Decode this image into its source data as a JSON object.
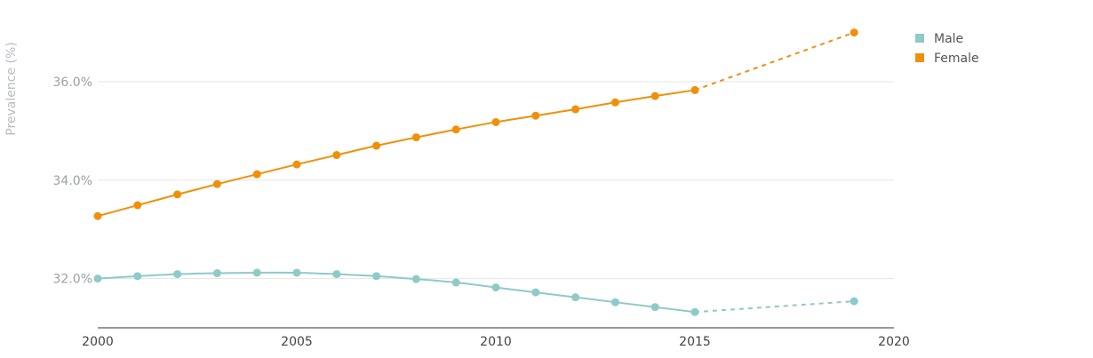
{
  "chart_data": {
    "type": "line",
    "title": "",
    "xlabel": "",
    "ylabel": "Prevalence (%)",
    "xlim": [
      2000,
      2020
    ],
    "ylim": [
      31.0,
      37.3
    ],
    "x_ticks": [
      {
        "value": 2000,
        "label": "2000"
      },
      {
        "value": 2005,
        "label": "2005"
      },
      {
        "value": 2010,
        "label": "2010"
      },
      {
        "value": 2015,
        "label": "2015"
      },
      {
        "value": 2020,
        "label": "2020"
      }
    ],
    "y_ticks": [
      {
        "value": 32.0,
        "label": "32.0%"
      },
      {
        "value": 34.0,
        "label": "34.0%"
      },
      {
        "value": 36.0,
        "label": "36.0%"
      }
    ],
    "grid": true,
    "legend_position": "top-right",
    "series": [
      {
        "name": "Male",
        "color": "#8ecac8",
        "x": [
          2000,
          2001,
          2002,
          2003,
          2004,
          2005,
          2006,
          2007,
          2008,
          2009,
          2010,
          2011,
          2012,
          2013,
          2014,
          2015
        ],
        "values": [
          32.0,
          32.05,
          32.09,
          32.11,
          32.12,
          32.12,
          32.09,
          32.05,
          31.99,
          31.92,
          31.82,
          31.72,
          31.62,
          31.52,
          31.42,
          31.32
        ],
        "projection": {
          "x": [
            2015,
            2019
          ],
          "values": [
            31.32,
            31.54
          ]
        }
      },
      {
        "name": "Female",
        "color": "#f0900a",
        "x": [
          2000,
          2001,
          2002,
          2003,
          2004,
          2005,
          2006,
          2007,
          2008,
          2009,
          2010,
          2011,
          2012,
          2013,
          2014,
          2015
        ],
        "values": [
          33.27,
          33.49,
          33.71,
          33.92,
          34.12,
          34.32,
          34.51,
          34.7,
          34.87,
          35.03,
          35.18,
          35.31,
          35.44,
          35.58,
          35.71,
          35.83
        ],
        "projection": {
          "x": [
            2015,
            2019
          ],
          "values": [
            35.83,
            37.0
          ]
        }
      }
    ]
  }
}
